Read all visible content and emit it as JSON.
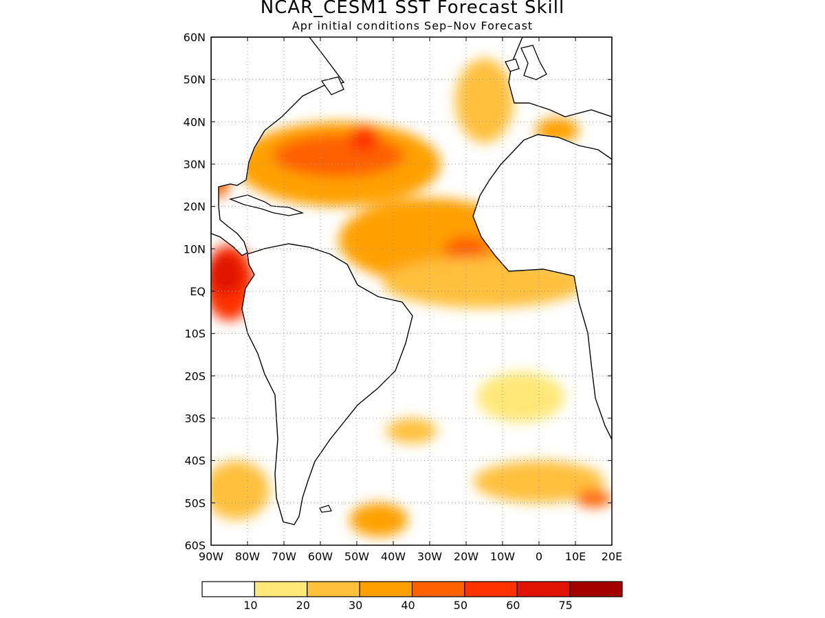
{
  "header": {
    "title": "NCAR_CESM1 SST Forecast Skill",
    "subtitle": "Apr initial conditions   Sep–Nov Forecast"
  },
  "map": {
    "lon_range": [
      -90,
      20
    ],
    "lat_range": [
      -60,
      60
    ],
    "lat_labels": [
      "60N",
      "50N",
      "40N",
      "30N",
      "20N",
      "10N",
      "EQ",
      "10S",
      "20S",
      "30S",
      "40S",
      "50S",
      "60S"
    ],
    "lon_labels": [
      "90W",
      "80W",
      "70W",
      "60W",
      "50W",
      "40W",
      "30W",
      "20W",
      "10W",
      "0",
      "10E",
      "20E"
    ],
    "gridlines": "dotted"
  },
  "colorbar": {
    "colors": [
      "#ffffff",
      "#ffe878",
      "#ffc03c",
      "#ffa000",
      "#ff6000",
      "#ff3200",
      "#e01400",
      "#a50000"
    ],
    "labels": [
      "10",
      "20",
      "30",
      "40",
      "50",
      "60",
      "75"
    ]
  },
  "skill_regions": [
    {
      "name": "north-atlantic-subtropics",
      "level": 3,
      "lon": -55,
      "lat": 30,
      "rlon": 28,
      "rlat": 10
    },
    {
      "name": "north-atlantic-core",
      "level": 4,
      "lon": -55,
      "lat": 32,
      "rlon": 18,
      "rlat": 5
    },
    {
      "name": "north-atlantic-peak",
      "level": 5,
      "lon": -48,
      "lat": 36,
      "rlon": 4,
      "rlat": 3
    },
    {
      "name": "tropical-north-atlantic",
      "level": 3,
      "lon": -30,
      "lat": 12,
      "rlon": 25,
      "rlat": 10
    },
    {
      "name": "tropical-north-atlantic-core",
      "level": 4,
      "lon": -20,
      "lat": 10,
      "rlon": 6,
      "rlat": 3
    },
    {
      "name": "equatorial-atlantic",
      "level": 2,
      "lon": -15,
      "lat": 2,
      "rlon": 28,
      "rlat": 6
    },
    {
      "name": "east-pacific-equatorial",
      "level": 5,
      "lon": -85,
      "lat": 2,
      "rlon": 7,
      "rlat": 9
    },
    {
      "name": "east-pacific-peak",
      "level": 6,
      "lon": -86,
      "lat": 4,
      "rlon": 5,
      "rlat": 5
    },
    {
      "name": "gulf-of-mexico",
      "level": 4,
      "lon": -88,
      "lat": 26,
      "rlon": 3,
      "rlat": 4
    },
    {
      "name": "eastern-north-atlantic",
      "level": 2,
      "lon": -15,
      "lat": 45,
      "rlon": 8,
      "rlat": 10
    },
    {
      "name": "mediterranean",
      "level": 3,
      "lon": 5,
      "lat": 38,
      "rlon": 6,
      "rlat": 3
    },
    {
      "name": "southern-ocean-west",
      "level": 2,
      "lon": -83,
      "lat": -47,
      "rlon": 9,
      "rlat": 7
    },
    {
      "name": "southern-ocean-south-atlantic",
      "level": 3,
      "lon": -44,
      "lat": -54,
      "rlon": 8,
      "rlat": 4
    },
    {
      "name": "southern-ocean-east",
      "level": 2,
      "lon": 0,
      "lat": -45,
      "rlon": 18,
      "rlat": 5
    },
    {
      "name": "southern-ocean-east-core",
      "level": 4,
      "lon": 15,
      "lat": -49,
      "rlon": 5,
      "rlat": 2
    },
    {
      "name": "south-atlantic-mid",
      "level": 1,
      "lon": -5,
      "lat": -25,
      "rlon": 12,
      "rlat": 6
    },
    {
      "name": "south-atlantic-west",
      "level": 2,
      "lon": -35,
      "lat": -33,
      "rlon": 7,
      "rlat": 3
    }
  ]
}
